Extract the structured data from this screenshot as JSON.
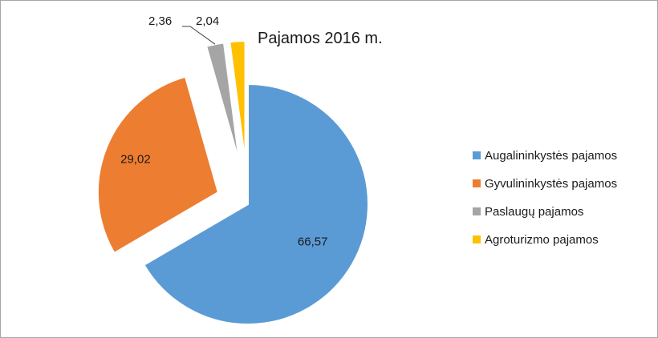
{
  "chart_data": {
    "type": "pie",
    "title": "Pajamos 2016 m.",
    "exploded": true,
    "legend_position": "right",
    "slices": [
      {
        "name": "Augalininkystės pajamos",
        "value": 66.57,
        "label": "66,57",
        "color": "#5B9BD5"
      },
      {
        "name": "Gyvulininkystės pajamos",
        "value": 29.02,
        "label": "29,02",
        "color": "#ED7D31"
      },
      {
        "name": "Paslaugų pajamos",
        "value": 2.36,
        "label": "2,36",
        "color": "#A5A5A5"
      },
      {
        "name": "Agroturizmo pajamos",
        "value": 2.04,
        "label": "2,04",
        "color": "#FFC000"
      }
    ]
  }
}
